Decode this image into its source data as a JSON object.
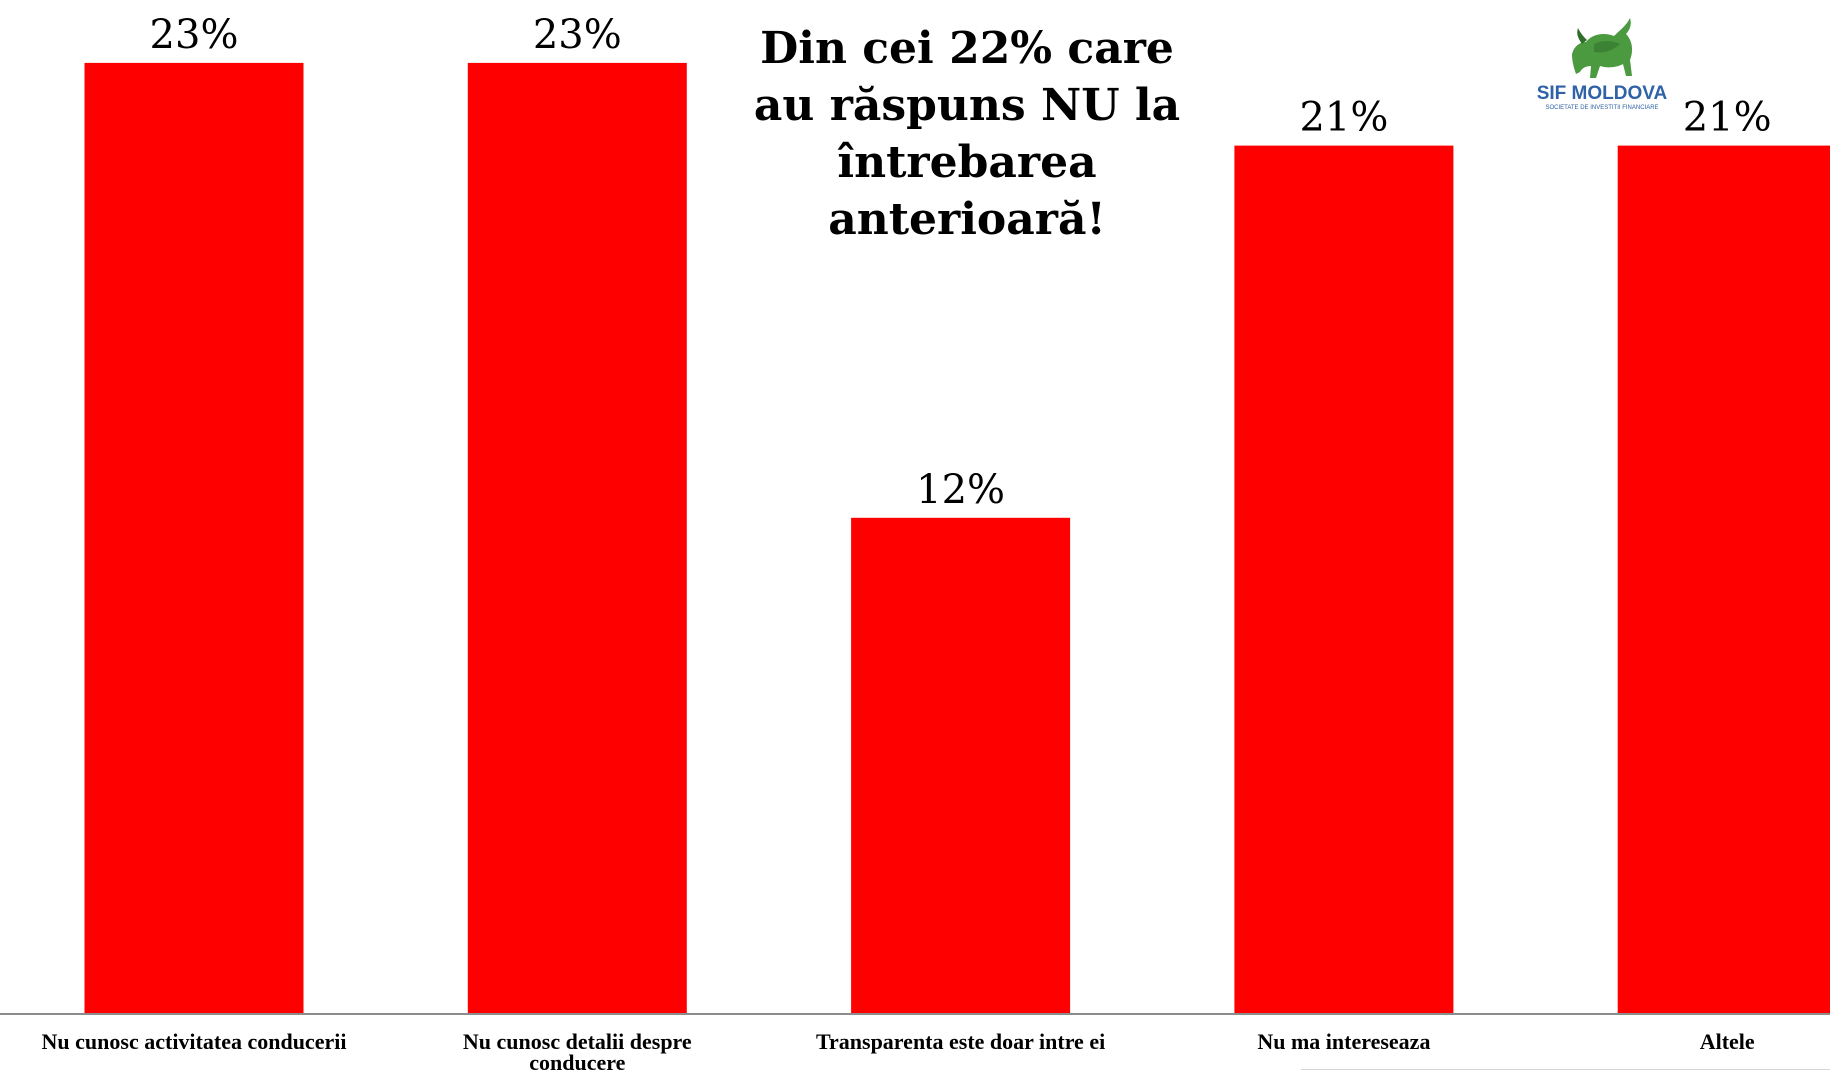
{
  "chart_data": {
    "type": "bar",
    "title": "Din cei 22% care\nau răspuns NU la\nîntrebarea\nanterioară!",
    "categories": [
      "Nu cunosc activitatea conducerii",
      "Nu cunosc detalii despre conducere",
      "Transparenta este doar intre ei",
      "Nu ma intereseaza",
      "Altele"
    ],
    "values": [
      23,
      23,
      12,
      21,
      21
    ],
    "data_labels": [
      "23%",
      "23%",
      "12%",
      "21%",
      "21%"
    ],
    "xlabel": "",
    "ylabel": "",
    "grid": false,
    "legend": "none"
  },
  "logo": {
    "name": "SIF MOLDOVA",
    "tagline": "SOCIETATE DE INVESTITII FINANCIARE",
    "icon": "bull-icon"
  },
  "colors": {
    "bar": "#ff0000",
    "text": "#000000",
    "axis": "#8c8c8c",
    "logo_text": "#2f62a6",
    "logo_icon": "#4b9a40",
    "logo_icon_dark": "#2f6f2a"
  }
}
